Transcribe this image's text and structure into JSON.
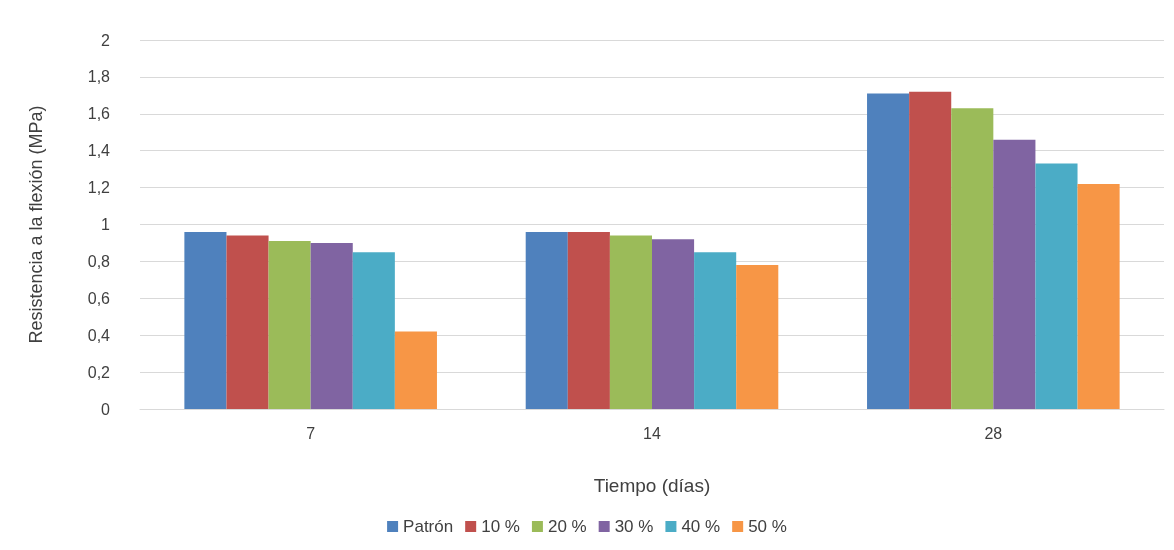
{
  "chart_data": {
    "type": "bar",
    "xlabel": "Tiempo (días)",
    "ylabel": "Resistencia a la flexión (MPa)",
    "categories": [
      "7",
      "14",
      "28"
    ],
    "series": [
      {
        "name": "Patrón",
        "color": "#4f81bd",
        "values": [
          0.96,
          0.96,
          1.71
        ]
      },
      {
        "name": "10 %",
        "color": "#c0504d",
        "values": [
          0.94,
          0.96,
          1.72
        ]
      },
      {
        "name": "20 %",
        "color": "#9bbb59",
        "values": [
          0.91,
          0.94,
          1.63
        ]
      },
      {
        "name": "30 %",
        "color": "#8064a2",
        "values": [
          0.9,
          0.92,
          1.46
        ]
      },
      {
        "name": "40 %",
        "color": "#4bacc6",
        "values": [
          0.85,
          0.85,
          1.33
        ]
      },
      {
        "name": "50 %",
        "color": "#f79646",
        "values": [
          0.42,
          0.78,
          1.22
        ]
      }
    ],
    "ylim": [
      0,
      2
    ],
    "yticks": [
      0,
      {
        "value": 0.2,
        "label": "0,2"
      },
      {
        "value": 0.4,
        "label": "0,4"
      },
      {
        "value": 0.6,
        "label": "0,6"
      },
      {
        "value": 0.8,
        "label": "0,8"
      },
      1,
      {
        "value": 1.2,
        "label": "1,2"
      },
      {
        "value": 1.4,
        "label": "1,4"
      },
      {
        "value": 1.6,
        "label": "1,6"
      },
      {
        "value": 1.8,
        "label": "1,8"
      },
      2
    ],
    "grid": "y",
    "legend": "bottom"
  }
}
